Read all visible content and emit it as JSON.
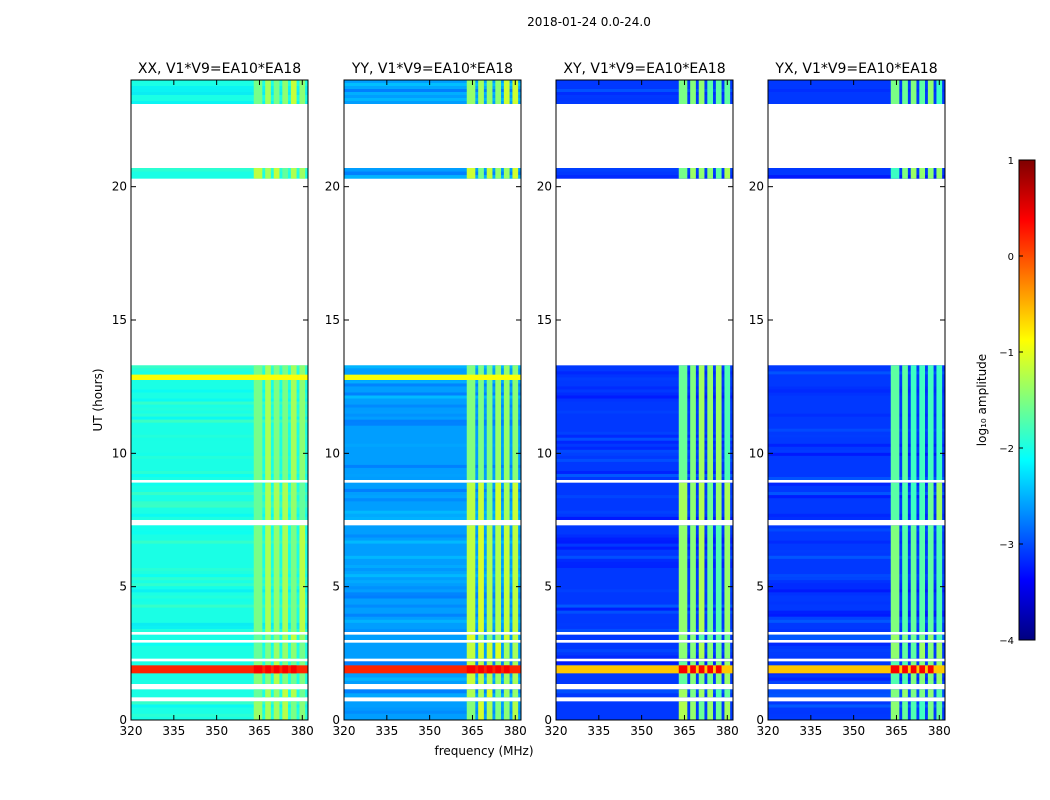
{
  "chart_data": {
    "type": "heatmap",
    "suptitle": "2018-01-24 0.0-24.0",
    "xlabel": "frequency (MHz)",
    "ylabel": "UT (hours)",
    "xlim": [
      320,
      382
    ],
    "ylim": [
      0,
      24
    ],
    "xticks": [
      320,
      335,
      350,
      365,
      380
    ],
    "yticks": [
      0,
      5,
      10,
      15,
      20
    ],
    "colorbar": {
      "label": "log₁₀ amplitude",
      "range": [
        -4,
        1
      ],
      "ticks": [
        1,
        0,
        -1,
        -2,
        -3,
        -4
      ],
      "colors": [
        "#00007f",
        "#0000ff",
        "#007fff",
        "#00ffff",
        "#7fff7f",
        "#ffff00",
        "#ff7f00",
        "#ff0000",
        "#7f0000"
      ]
    },
    "panels": [
      {
        "title": "XX, V1*V9=EA10*EA18",
        "base_level": -2.0,
        "band_level": -1.4
      },
      {
        "title": "YY, V1*V9=EA10*EA18",
        "base_level": -2.6,
        "band_level": -1.3
      },
      {
        "title": "XY, V1*V9=EA10*EA18",
        "base_level": -3.1,
        "band_level": -1.5
      },
      {
        "title": "YX, V1*V9=EA10*EA18",
        "base_level": -3.1,
        "band_level": -1.6
      }
    ],
    "rfi_channels_mhz": [
      [
        363,
        366
      ],
      [
        367,
        369
      ],
      [
        370,
        372
      ],
      [
        373,
        375
      ],
      [
        376,
        378
      ],
      [
        379,
        381
      ]
    ],
    "data_ut_ranges": [
      [
        0.0,
        0.7
      ],
      [
        0.85,
        1.15
      ],
      [
        1.35,
        2.2
      ],
      [
        2.3,
        2.9
      ],
      [
        3.0,
        3.2
      ],
      [
        3.3,
        7.3
      ],
      [
        7.5,
        8.9
      ],
      [
        9.0,
        13.3
      ],
      [
        20.3,
        20.7
      ],
      [
        23.1,
        24.0
      ]
    ],
    "bright_ut_ranges": [
      [
        1.75,
        2.05
      ],
      [
        12.75,
        12.95
      ]
    ]
  }
}
